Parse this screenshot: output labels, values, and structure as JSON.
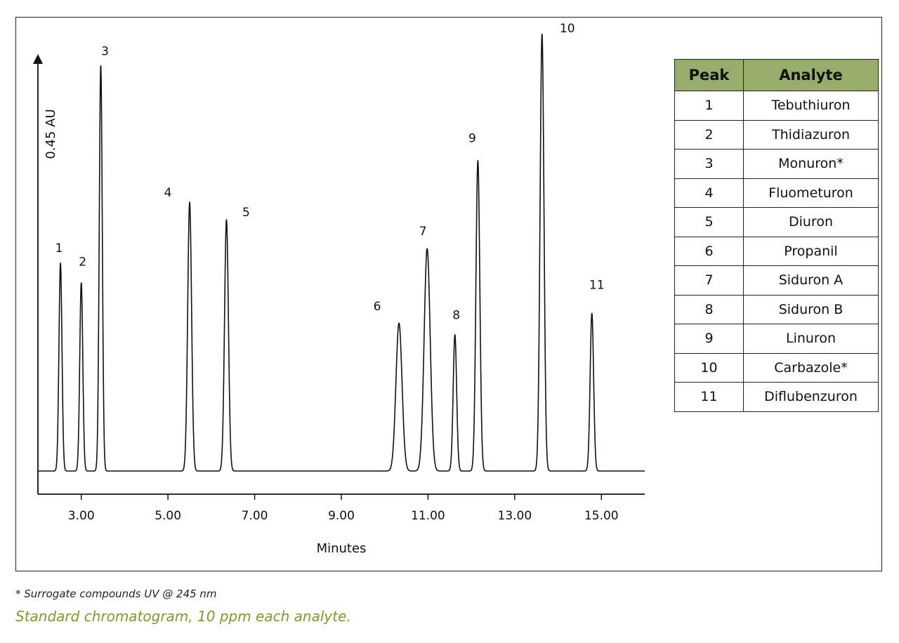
{
  "chart_data": {
    "type": "line",
    "xlabel": "Minutes",
    "ylabel": "0.45 AU",
    "xlim": [
      2.0,
      16.0
    ],
    "ylim": [
      0,
      0.45
    ],
    "xticks": [
      "3.00",
      "5.00",
      "7.00",
      "9.00",
      "11.00",
      "13.00",
      "15.00"
    ],
    "grid": false,
    "peaks": [
      {
        "label": "1",
        "rt": 2.52,
        "height": 0.215,
        "width": 0.035
      },
      {
        "label": "2",
        "rt": 3.0,
        "height": 0.195,
        "width": 0.035
      },
      {
        "label": "3",
        "rt": 3.45,
        "height": 0.42,
        "width": 0.035
      },
      {
        "label": "4",
        "rt": 5.5,
        "height": 0.278,
        "width": 0.045
      },
      {
        "label": "5",
        "rt": 6.35,
        "height": 0.26,
        "width": 0.045
      },
      {
        "label": "6",
        "rt": 10.33,
        "height": 0.153,
        "width": 0.07
      },
      {
        "label": "7",
        "rt": 10.98,
        "height": 0.23,
        "width": 0.07
      },
      {
        "label": "8",
        "rt": 11.62,
        "height": 0.141,
        "width": 0.04
      },
      {
        "label": "9",
        "rt": 12.15,
        "height": 0.321,
        "width": 0.045
      },
      {
        "label": "10",
        "rt": 13.63,
        "height": 0.452,
        "width": 0.045
      },
      {
        "label": "11",
        "rt": 14.78,
        "height": 0.163,
        "width": 0.04
      }
    ]
  },
  "table": {
    "headers": [
      "Peak",
      "Analyte"
    ],
    "rows": [
      [
        "1",
        "Tebuthiuron"
      ],
      [
        "2",
        "Thidiazuron"
      ],
      [
        "3",
        "Monuron*"
      ],
      [
        "4",
        "Fluometuron"
      ],
      [
        "5",
        "Diuron"
      ],
      [
        "6",
        "Propanil"
      ],
      [
        "7",
        "Siduron A"
      ],
      [
        "8",
        "Siduron B"
      ],
      [
        "9",
        "Linuron"
      ],
      [
        "10",
        "Carbazole*"
      ],
      [
        "11",
        "Diflubenzuron"
      ]
    ]
  },
  "footnote": "* Surrogate compounds UV @ 245 nm",
  "caption": "Standard chromatogram, 10 ppm each analyte.",
  "colors": {
    "header_fill": "#99ad6b",
    "caption": "#7d9a2c",
    "trace": "#111111"
  }
}
